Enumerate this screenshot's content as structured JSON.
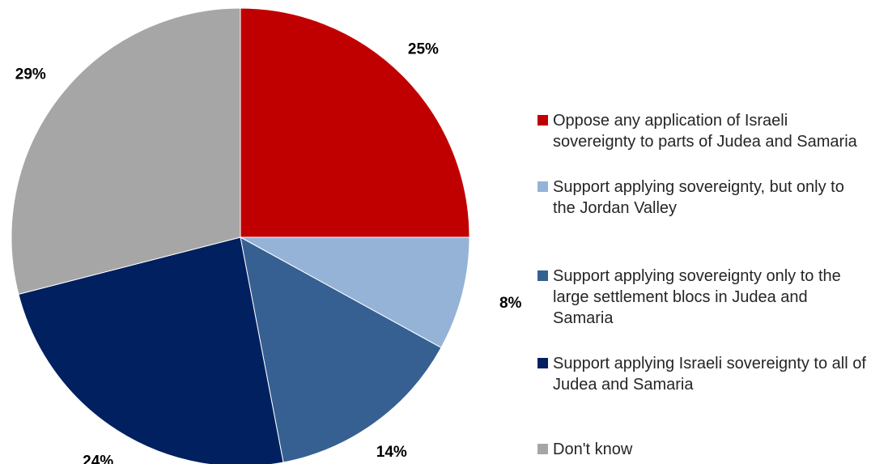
{
  "chart_data": {
    "type": "pie",
    "start_angle_deg": 0,
    "direction": "clockwise",
    "slices": [
      {
        "label": "Oppose any application of Israeli sovereignty to parts of Judea and Samaria",
        "value": 25,
        "value_label": "25%",
        "color": "#C00000"
      },
      {
        "label": "Support applying sovereignty, but only to the Jordan Valley",
        "value": 8,
        "value_label": "8%",
        "color": "#95B3D7"
      },
      {
        "label": "Support applying sovereignty only to the large settlement blocs in Judea and Samaria",
        "value": 14,
        "value_label": "14%",
        "color": "#366092"
      },
      {
        "label": "Support applying Israeli sovereignty to all of Judea and Samaria",
        "value": 24,
        "value_label": "24%",
        "color": "#002060"
      },
      {
        "label": "Don't know",
        "value": 29,
        "value_label": "29%",
        "color": "#A6A6A6"
      }
    ],
    "legend_position": "right"
  }
}
